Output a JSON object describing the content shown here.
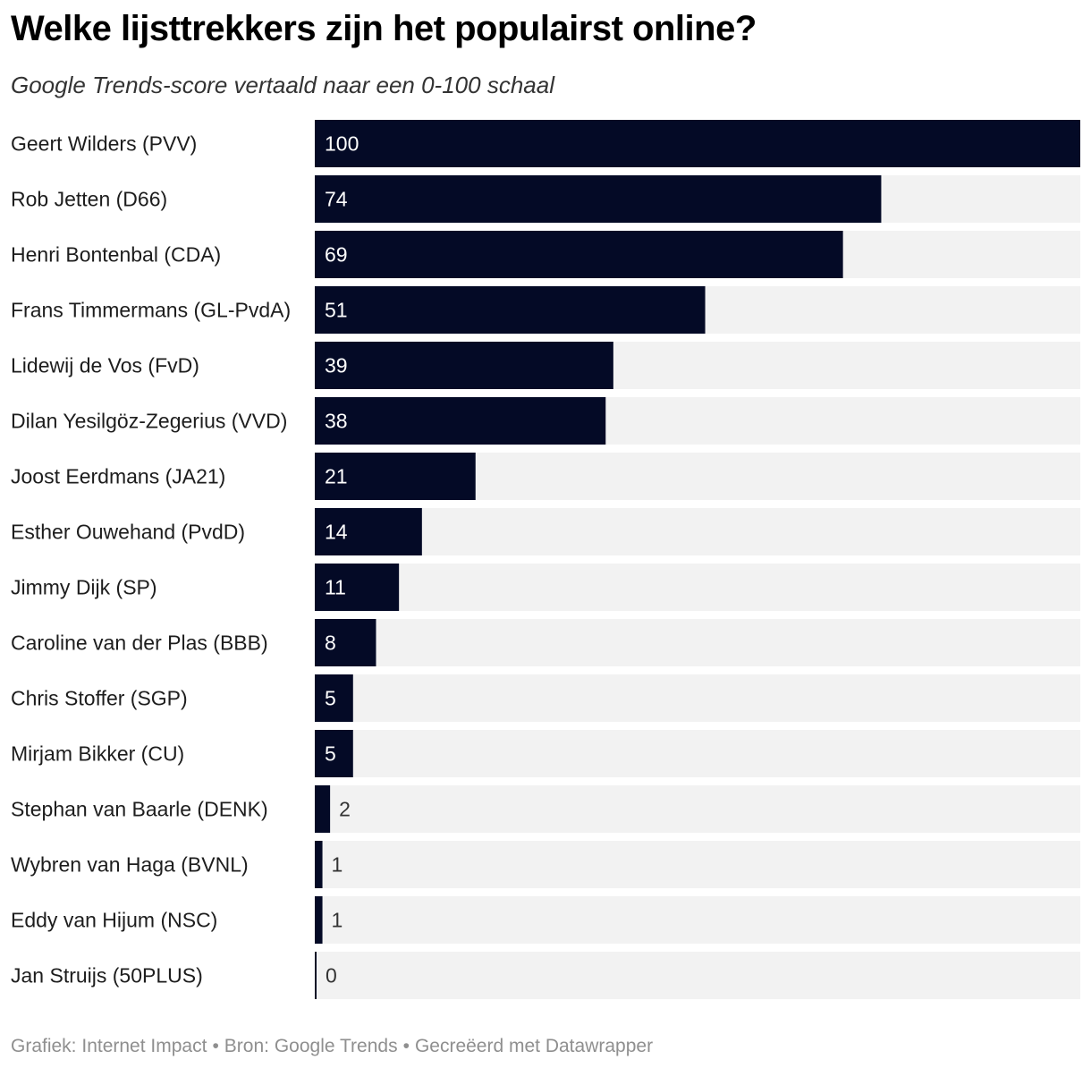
{
  "header": {
    "title": "Welke lijsttrekkers zijn het populairst online?",
    "subtitle": "Google Trends-score vertaald naar een 0-100 schaal"
  },
  "chart_data": {
    "type": "bar",
    "orientation": "horizontal",
    "title": "Welke lijsttrekkers zijn het populairst online?",
    "subtitle": "Google Trends-score vertaald naar een 0-100 schaal",
    "xlim": [
      0,
      100
    ],
    "grid": false,
    "legend": "none",
    "categories": [
      "Geert Wilders (PVV)",
      "Rob Jetten (D66)",
      "Henri Bontenbal (CDA)",
      "Frans Timmermans (GL-PvdA)",
      "Lidewij de Vos (FvD)",
      "Dilan Yesilgöz-Zegerius (VVD)",
      "Joost Eerdmans (JA21)",
      "Esther Ouwehand (PvdD)",
      "Jimmy Dijk (SP)",
      "Caroline van der Plas (BBB)",
      "Chris Stoffer (SGP)",
      "Mirjam Bikker (CU)",
      "Stephan van Baarle (DENK)",
      "Wybren van Haga (BVNL)",
      "Eddy van Hijum (NSC)",
      "Jan Struijs (50PLUS)"
    ],
    "values": [
      100,
      74,
      69,
      51,
      39,
      38,
      21,
      14,
      11,
      8,
      5,
      5,
      2,
      1,
      1,
      0
    ],
    "colors": {
      "bar": "#040a26",
      "track": "#f2f2f2",
      "label_inside": "#ffffff",
      "label_outside": "#333333"
    }
  },
  "footer": {
    "graph_credit": "Grafiek: Internet Impact",
    "source": "Bron: Google Trends",
    "tool": "Gecreëerd met Datawrapper",
    "separator": "•"
  }
}
